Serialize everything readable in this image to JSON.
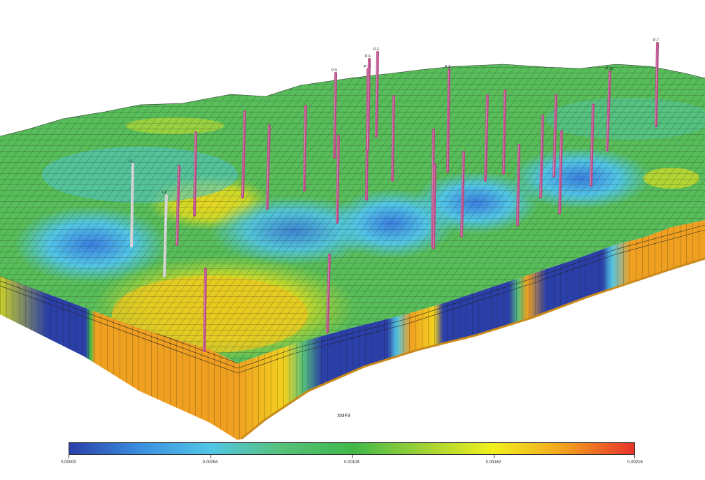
{
  "viewport": {
    "property_label": "XMF3"
  },
  "colorbar": {
    "colors": [
      "#2a3fa8",
      "#3a8fe0",
      "#52c6e6",
      "#56c17a",
      "#3fb84a",
      "#9fd135",
      "#f2f01e",
      "#f2a21f",
      "#e8322b"
    ],
    "ticks": [
      "0.00000",
      "0.00054",
      "0.00108",
      "0.00162",
      "0.00216"
    ]
  },
  "wells": [
    {
      "name": "P-2",
      "color": "#b84a86"
    },
    {
      "name": "P-14",
      "color": "#b84a86"
    },
    {
      "name": "P-3",
      "color": "#b84a86"
    },
    {
      "name": "P-9",
      "color": "#b84a86"
    },
    {
      "name": "P-7",
      "color": "#b84a86"
    },
    {
      "name": "P-12",
      "color": "#b84a86"
    },
    {
      "name": "P-6",
      "color": "#b84a86"
    },
    {
      "name": "I-1",
      "color": "#cfcfcf"
    },
    {
      "name": "I-2",
      "color": "#cfcfcf"
    }
  ]
}
